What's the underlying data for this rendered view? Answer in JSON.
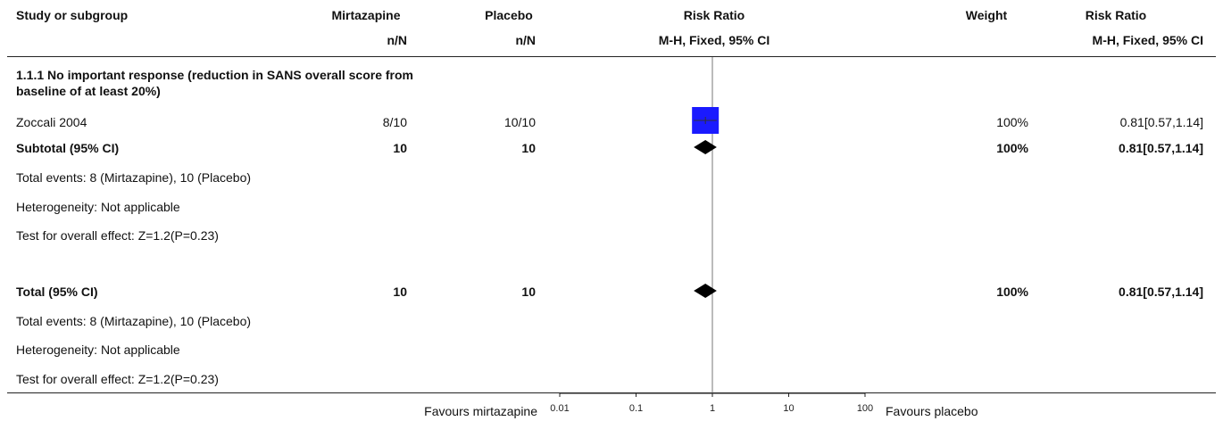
{
  "header": {
    "study": "Study or subgroup",
    "group1": "Mirtazapine",
    "group1_sub": "n/N",
    "group2": "Placebo",
    "group2_sub": "n/N",
    "rr": "Risk Ratio",
    "rr_sub": "M-H, Fixed, 95% CI",
    "weight": "Weight",
    "rr2": "Risk Ratio",
    "rr2_sub": "M-H, Fixed, 95% CI"
  },
  "subgroup": {
    "title_line1": "1.1.1 No important response (reduction in SANS overall score from",
    "title_line2": "baseline of at least 20%)",
    "study": {
      "name": "Zoccali 2004",
      "g1": "8/10",
      "g2": "10/10",
      "weight": "100%",
      "ci": "0.81[0.57,1.14]"
    },
    "subtotal": {
      "label": "Subtotal (95% CI)",
      "g1": "10",
      "g2": "10",
      "weight": "100%",
      "ci": "0.81[0.57,1.14]"
    },
    "events": "Total events: 8 (Mirtazapine), 10 (Placebo)",
    "heterogeneity": "Heterogeneity: Not applicable",
    "test": "Test for overall effect: Z=1.2(P=0.23)"
  },
  "total": {
    "label": "Total (95% CI)",
    "g1": "10",
    "g2": "10",
    "weight": "100%",
    "ci": "0.81[0.57,1.14]",
    "events": "Total events: 8 (Mirtazapine), 10 (Placebo)",
    "heterogeneity": "Heterogeneity: Not applicable",
    "test": "Test for overall effect: Z=1.2(P=0.23)"
  },
  "footer": {
    "favours_left": "Favours mirtazapine",
    "favours_right": "Favours placebo"
  },
  "colors": {
    "study_box": "#1a1aff",
    "diamond": "#000000",
    "axis": "#222222"
  },
  "chart_data": {
    "type": "forest",
    "scale": "log",
    "xlim": [
      0.01,
      100
    ],
    "x_ticks": [
      0.01,
      0.1,
      1,
      10,
      100
    ],
    "x_tick_labels": [
      "0.01",
      "0.1",
      "1",
      "10",
      "100"
    ],
    "null_line": 1,
    "studies": [
      {
        "name": "Zoccali 2004",
        "rr": 0.81,
        "lower": 0.57,
        "upper": 1.14,
        "weight": 100
      }
    ],
    "summaries": [
      {
        "name": "Subtotal (95% CI)",
        "rr": 0.81,
        "lower": 0.57,
        "upper": 1.14
      },
      {
        "name": "Total (95% CI)",
        "rr": 0.81,
        "lower": 0.57,
        "upper": 1.14
      }
    ]
  }
}
